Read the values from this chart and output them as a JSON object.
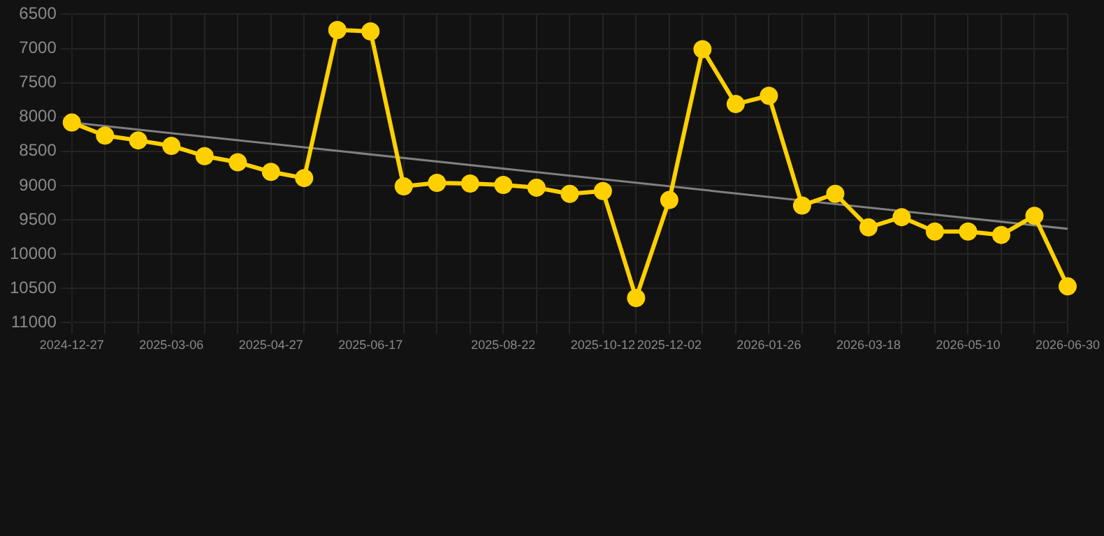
{
  "chart_data": {
    "type": "line",
    "categories": [
      "2024-12-27",
      null,
      null,
      "2025-03-06",
      null,
      null,
      "2025-04-27",
      null,
      null,
      "2025-06-17",
      null,
      null,
      null,
      "2025-08-22",
      null,
      null,
      "2025-10-12",
      null,
      "2025-12-02",
      null,
      null,
      "2026-01-26",
      null,
      null,
      "2026-03-18",
      null,
      null,
      "2026-05-10",
      null,
      null,
      "2026-06-30"
    ],
    "series": [
      {
        "color": "#ffd000",
        "marker": "circle",
        "values": [
          8080,
          8270,
          8340,
          8420,
          8570,
          8660,
          8800,
          8890,
          6730,
          6750,
          9010,
          8960,
          8970,
          8990,
          9030,
          9120,
          9080,
          10640,
          9210,
          7010,
          7810,
          7690,
          9290,
          9120,
          9610,
          9460,
          9670,
          9670,
          9720,
          9440,
          10470
        ]
      },
      {
        "color": "#808080",
        "marker": "none",
        "values": [
          8080,
          null,
          null,
          null,
          null,
          null,
          null,
          null,
          null,
          null,
          null,
          null,
          null,
          null,
          null,
          null,
          null,
          null,
          null,
          null,
          null,
          null,
          null,
          null,
          null,
          null,
          null,
          null,
          null,
          null,
          9630
        ]
      }
    ],
    "ylim": [
      11000,
      6500
    ],
    "yticks": [
      6500,
      7000,
      7500,
      8000,
      8500,
      9000,
      9500,
      10000,
      10500,
      11000
    ],
    "grid": true,
    "legend": false
  }
}
